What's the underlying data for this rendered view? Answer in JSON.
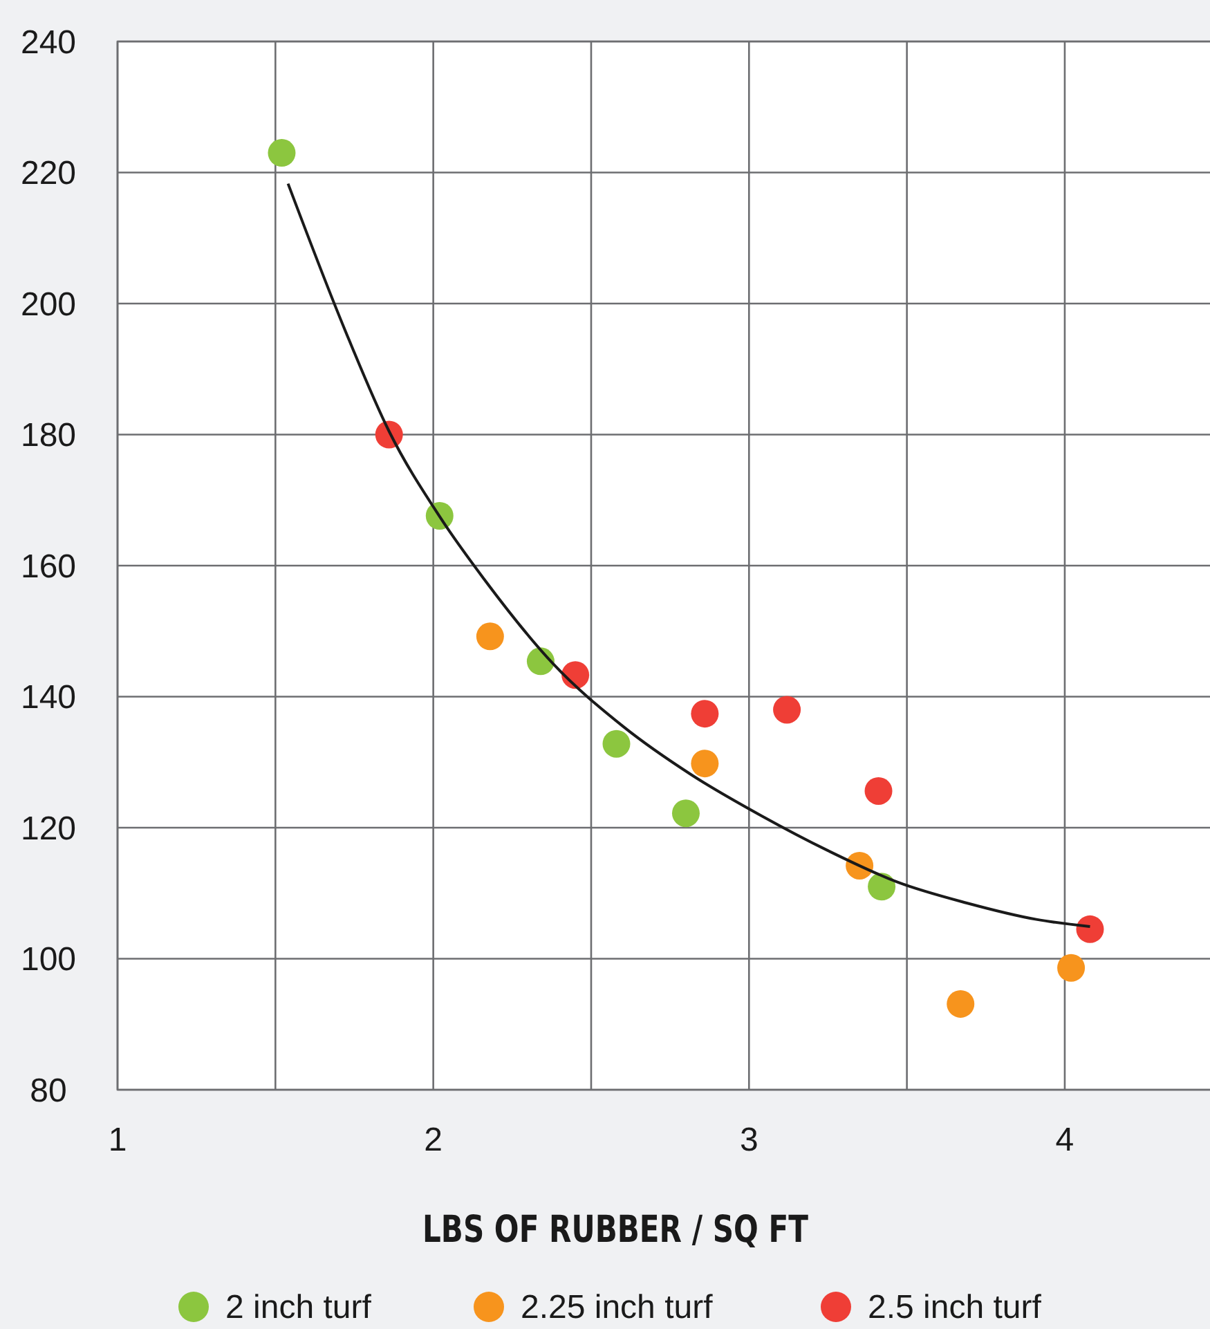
{
  "chart_data": {
    "type": "scatter",
    "xlabel": "LBS OF RUBBER / SQ FT",
    "xlim": [
      1,
      4.46
    ],
    "xticks": [
      1,
      {
        "value": 1.5,
        "label": null
      },
      2,
      {
        "value": 2.5,
        "label": null
      },
      3,
      {
        "value": 3.5,
        "label": null
      },
      4
    ],
    "ylim": [
      80,
      240
    ],
    "yticks": [
      80,
      100,
      120,
      140,
      160,
      180,
      200,
      220,
      240
    ],
    "grid": true,
    "legend": "bottom",
    "marker": "circle",
    "series": [
      {
        "name": "2 inch turf",
        "color": "#8cc63f",
        "x": [
          1.52,
          2.02,
          2.34,
          2.58,
          2.8,
          3.42
        ],
        "values": [
          223,
          167.6,
          145.4,
          132.8,
          122.2,
          111
        ]
      },
      {
        "name": "2.25 inch turf",
        "color": "#f7941d",
        "x": [
          2.18,
          2.86,
          3.35,
          3.67,
          4.02
        ],
        "values": [
          149.2,
          129.8,
          114.2,
          93.1,
          98.6
        ]
      },
      {
        "name": "2.5 inch turf",
        "color": "#ef3e36",
        "x": [
          1.86,
          2.45,
          2.86,
          3.12,
          3.41,
          4.08
        ],
        "values": [
          180,
          143.3,
          137.4,
          138,
          125.6,
          104.5
        ]
      },
      {
        "type": "line",
        "color": "#1a1a1a",
        "marker": "none",
        "x": [
          1.54,
          1.72,
          1.86,
          2.02,
          2.16,
          2.38,
          2.6,
          2.82,
          3.04,
          3.25,
          3.47,
          3.69,
          3.91,
          4.08
        ],
        "values": [
          218.3,
          196,
          180.5,
          167.5,
          158,
          145,
          135.5,
          128,
          121.8,
          116.5,
          111.7,
          108.5,
          106,
          104.9
        ]
      }
    ]
  }
}
